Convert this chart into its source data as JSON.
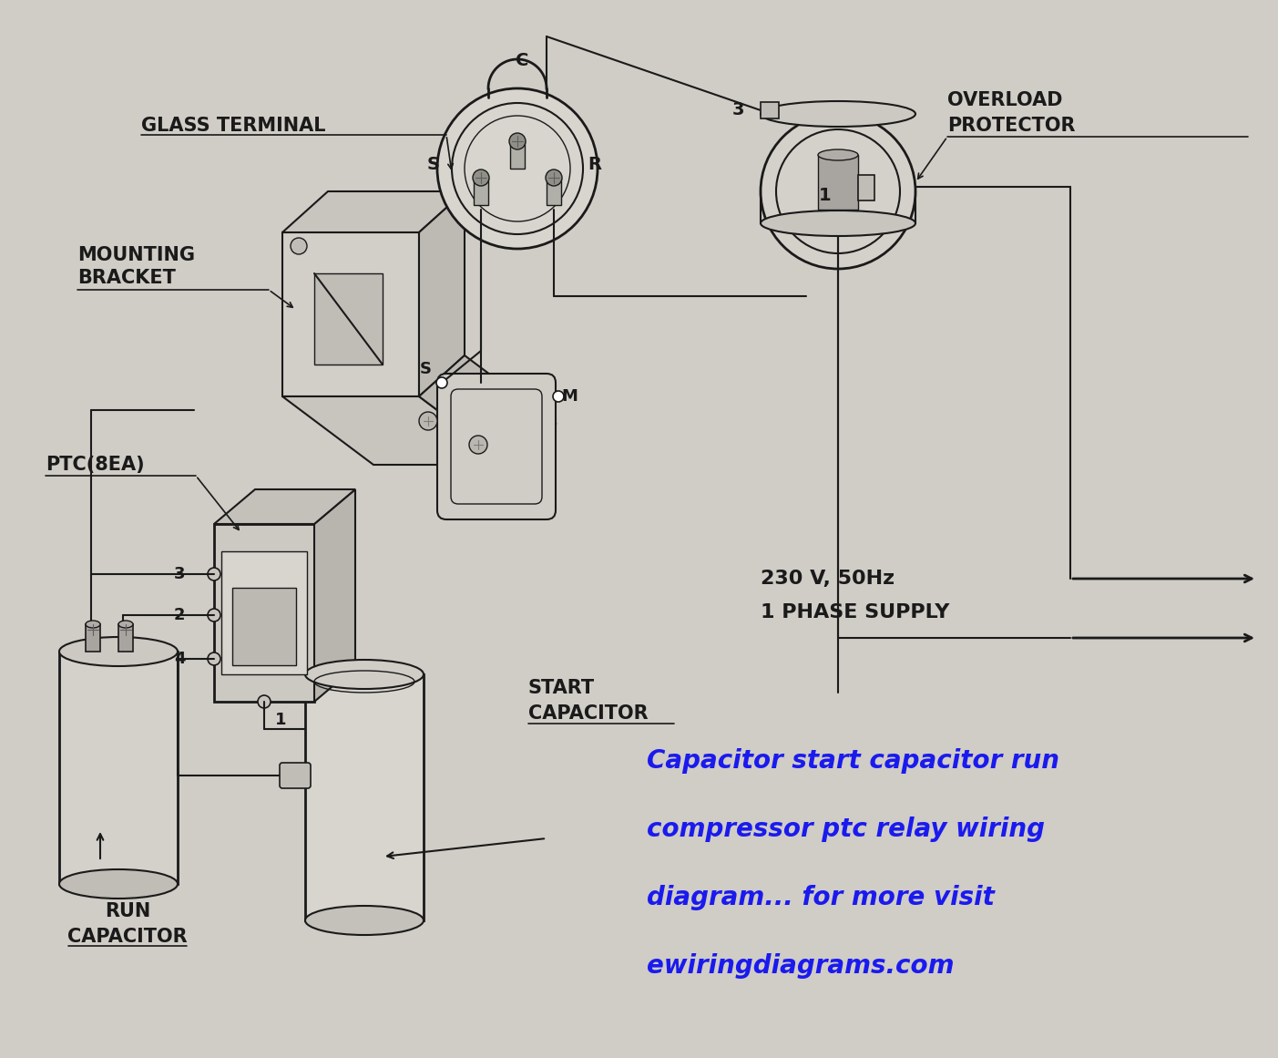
{
  "bg_color": "#d0ccc6",
  "blue_text_lines": [
    "Capacitor start capacitor run",
    "compressor ptc relay wiring",
    "diagram... for more visit",
    "ewiringdiagrams.com"
  ],
  "blue_text_color": "#1a1aee",
  "blue_text_fontsize": 20,
  "label_fontsize": 15,
  "small_fontsize": 13,
  "line_color": "#1a1a1a",
  "fig_width": 14.03,
  "fig_height": 11.61,
  "dpi": 100
}
